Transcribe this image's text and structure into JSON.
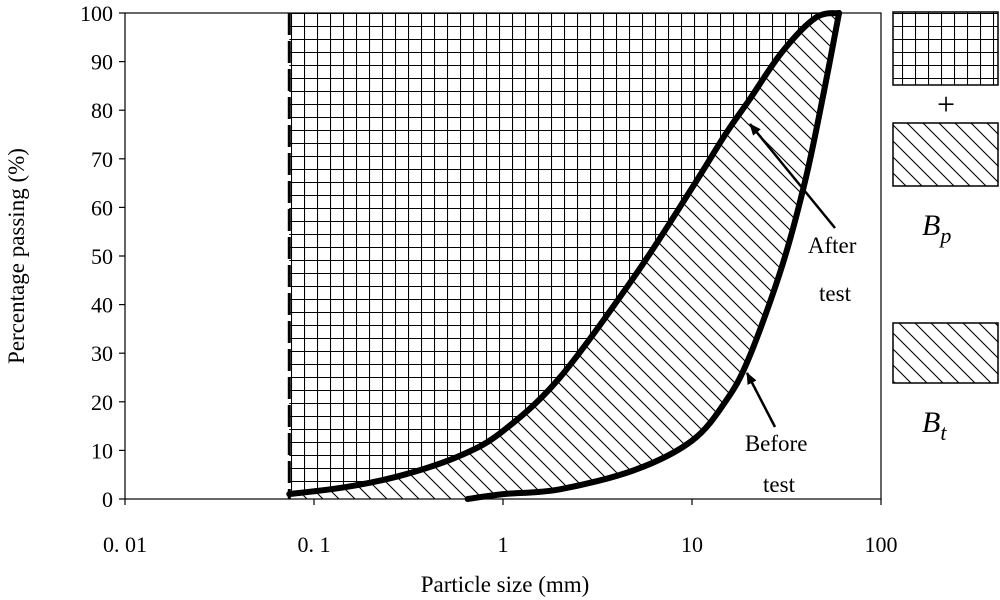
{
  "chart_data": {
    "type": "line",
    "xlabel": "Particle size (mm)",
    "ylabel": "Percentage passing (%)",
    "x_scale": "log",
    "xlim": [
      0.01,
      100
    ],
    "ylim": [
      0,
      100
    ],
    "x_ticks": [
      0.01,
      0.1,
      1,
      10,
      100
    ],
    "x_tick_labels": [
      "0. 01",
      "0. 1",
      "1",
      "10",
      "100"
    ],
    "y_ticks": [
      0,
      10,
      20,
      30,
      40,
      50,
      60,
      70,
      80,
      90,
      100
    ],
    "grid": false,
    "cutoff_size_mm": 0.074,
    "series": [
      {
        "name": "After test",
        "x": [
          0.074,
          0.15,
          0.3,
          0.6,
          1,
          2,
          5,
          10,
          15,
          20,
          30,
          45,
          60
        ],
        "y": [
          1,
          2.5,
          5,
          9,
          14,
          25,
          46,
          64,
          75,
          82,
          92,
          99,
          100
        ]
      },
      {
        "name": "Before test",
        "x": [
          0.65,
          1,
          2,
          5,
          10,
          15,
          20,
          30,
          40,
          50,
          60
        ],
        "y": [
          0,
          1,
          2,
          6,
          12,
          20,
          29,
          48,
          66,
          84,
          100
        ]
      }
    ],
    "annotations": [
      {
        "lines": [
          "After",
          "test"
        ],
        "points_to": "After test"
      },
      {
        "lines": [
          "Before",
          "test"
        ],
        "points_to": "Before test"
      }
    ],
    "legend": [
      {
        "symbol": "B",
        "subscript": "p",
        "patterns": [
          "grid",
          "+",
          "hatch"
        ]
      },
      {
        "symbol": "B",
        "subscript": "t",
        "patterns": [
          "hatch"
        ]
      }
    ]
  }
}
